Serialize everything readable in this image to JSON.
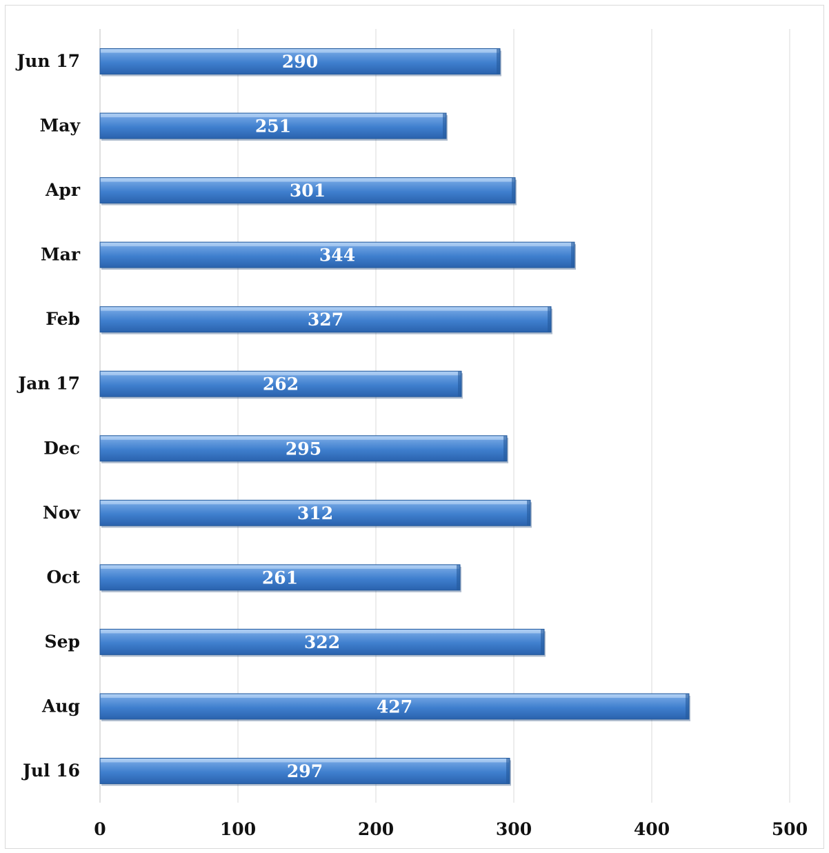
{
  "chart_data": {
    "type": "bar",
    "orientation": "horizontal",
    "categories": [
      "Jul 16",
      "Aug",
      "Sep",
      "Oct",
      "Nov",
      "Dec",
      "Jan 17",
      "Feb",
      "Mar",
      "Apr",
      "May",
      "Jun 17"
    ],
    "values": [
      297,
      427,
      322,
      261,
      312,
      295,
      262,
      327,
      344,
      301,
      251,
      290
    ],
    "xlim": [
      0,
      500
    ],
    "xticks": [
      0,
      100,
      200,
      300,
      400,
      500
    ],
    "title": "",
    "xlabel": "",
    "ylabel": "",
    "grid": "vertical",
    "legend": "none",
    "data_labels": true,
    "colors": {
      "bar": "#4a86cc",
      "bar_light": "#8ebbef",
      "bar_dark": "#245a9c",
      "grid": "#d9d9d9",
      "axis": "#bfbfbf"
    }
  }
}
